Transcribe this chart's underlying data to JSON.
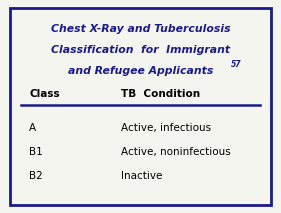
{
  "title_lines": [
    "Chest X-Ray and Tuberculosis",
    "Classification  for  Immigrant",
    "and Refugee Applicants"
  ],
  "superscript": "57",
  "col1_header": "Class",
  "col2_header": "TB  Condition",
  "rows": [
    [
      "A",
      "Active, infectious"
    ],
    [
      "B1",
      "Active, noninfectious"
    ],
    [
      "B2",
      "Inactive"
    ]
  ],
  "title_color": "#1a1a8c",
  "header_color": "#000000",
  "body_color": "#000000",
  "border_color": "#1a1a8c",
  "bg_color": "#f5f5f0",
  "line_color": "#1a1a8c",
  "figsize": [
    2.81,
    2.13
  ],
  "dpi": 100
}
